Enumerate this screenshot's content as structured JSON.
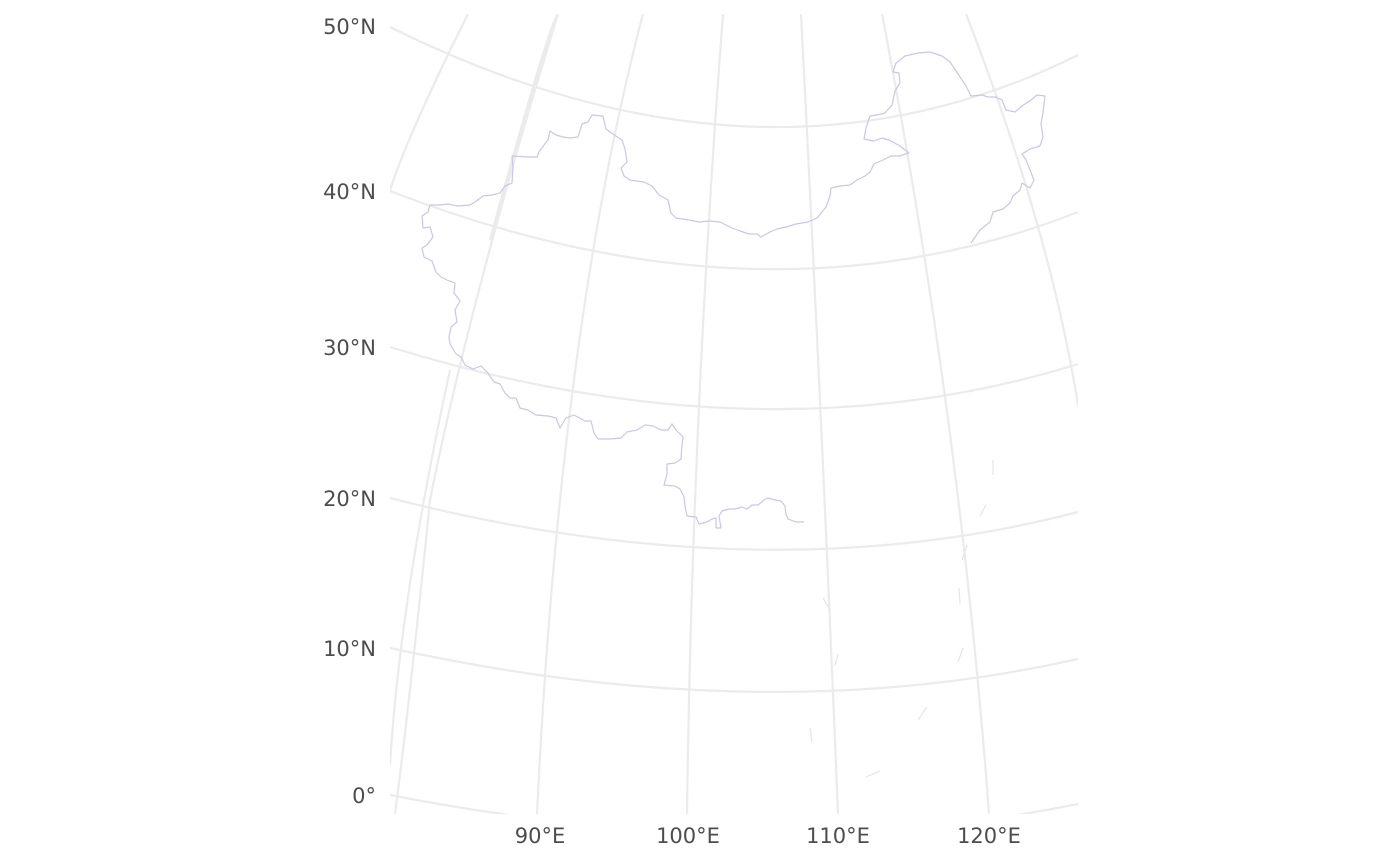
{
  "map": {
    "colors": {
      "background": "#ffffff",
      "graticule": "#ebebeb",
      "boundary": "#c9c6ea",
      "label": "#4d4d4d"
    },
    "lat_labels": [
      "50°N",
      "40°N",
      "30°N",
      "20°N",
      "10°N",
      "0°"
    ],
    "lon_labels": [
      "90°E",
      "100°E",
      "110°E",
      "120°E"
    ]
  }
}
